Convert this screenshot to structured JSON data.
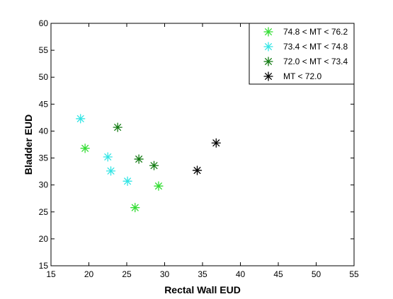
{
  "chart_data": {
    "type": "scatter",
    "xlabel": "Rectal Wall EUD",
    "ylabel": "Bladder EUD",
    "xlim": [
      15,
      55
    ],
    "ylim": [
      15,
      60
    ],
    "xticks": [
      15,
      20,
      25,
      30,
      35,
      40,
      45,
      50,
      55
    ],
    "yticks": [
      15,
      20,
      25,
      30,
      35,
      40,
      45,
      50,
      55,
      60
    ],
    "grid": false,
    "legend_position": "top-right",
    "marker": "asterisk",
    "series": [
      {
        "name": "74.8 < MT < 76.2",
        "color": "#33dd33",
        "points": [
          [
            19.5,
            36.8
          ],
          [
            26.1,
            25.8
          ],
          [
            29.2,
            29.8
          ]
        ]
      },
      {
        "name": "73.4 < MT < 74.8",
        "color": "#33e5e5",
        "points": [
          [
            18.9,
            42.3
          ],
          [
            22.5,
            35.2
          ],
          [
            22.9,
            32.6
          ],
          [
            25.1,
            30.7
          ]
        ]
      },
      {
        "name": "72.0 < MT < 73.4",
        "color": "#127a12",
        "points": [
          [
            23.8,
            40.7
          ],
          [
            26.6,
            34.8
          ],
          [
            28.6,
            33.6
          ]
        ]
      },
      {
        "name": "MT < 72.0",
        "color": "#000000",
        "points": [
          [
            34.3,
            32.7
          ],
          [
            36.8,
            37.8
          ]
        ]
      }
    ]
  }
}
